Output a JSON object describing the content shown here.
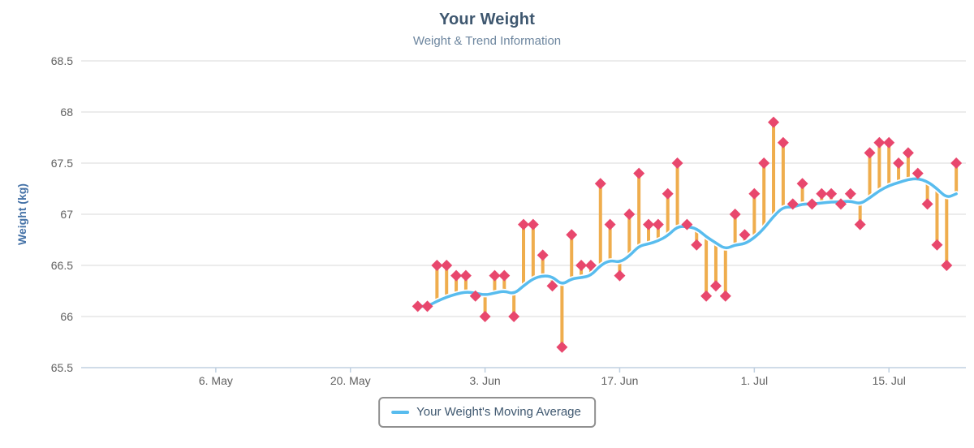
{
  "chart_data": {
    "type": "scatter",
    "title": "Your Weight",
    "subtitle": "Weight & Trend Information",
    "ylabel": "Weight (kg)",
    "xlabel": "",
    "ylim": [
      65.5,
      68.5
    ],
    "y_ticks": [
      "65.5",
      "66",
      "66.5",
      "67",
      "67.5",
      "68",
      "68.5"
    ],
    "y_tick_values": [
      65.5,
      66.0,
      66.5,
      67.0,
      67.5,
      68.0,
      68.5
    ],
    "x_tick_labels": [
      "6. May",
      "20. May",
      "3. Jun",
      "17. Jun",
      "1. Jul",
      "15. Jul"
    ],
    "x_axis": {
      "domain_days": 92,
      "first_tick_day": 14,
      "tick_interval_days": 14,
      "data_start_day": 35,
      "data_interval_days": 1
    },
    "grid": "horizontal",
    "legend_position": "bottom",
    "series": [
      {
        "name": "Your Weight",
        "marker": "diamond",
        "color": "#E8476D",
        "deviation_bar_color": "#EFAD4D",
        "values": [
          66.1,
          66.1,
          66.5,
          66.5,
          66.4,
          66.4,
          66.2,
          66.0,
          66.4,
          66.4,
          66.0,
          66.9,
          66.9,
          66.6,
          66.3,
          65.7,
          66.8,
          66.5,
          66.5,
          67.3,
          66.9,
          66.4,
          67.0,
          67.4,
          66.9,
          66.9,
          67.2,
          67.5,
          66.9,
          66.7,
          66.2,
          66.3,
          66.2,
          67.0,
          66.8,
          67.2,
          67.5,
          67.9,
          67.7,
          67.1,
          67.3,
          67.1,
          67.2,
          67.2,
          67.1,
          67.2,
          66.9,
          67.6,
          67.7,
          67.7,
          67.5,
          67.6,
          67.4,
          67.1,
          66.7,
          66.5,
          67.5
        ]
      },
      {
        "name": "Your Weight's Moving Average",
        "marker": "none",
        "color": "#58BCEE",
        "values": [
          66.1,
          66.1,
          66.15,
          66.19,
          66.22,
          66.24,
          66.23,
          66.21,
          66.23,
          66.25,
          66.22,
          66.3,
          66.37,
          66.4,
          66.39,
          66.31,
          66.37,
          66.38,
          66.4,
          66.5,
          66.55,
          66.53,
          66.59,
          66.69,
          66.71,
          66.74,
          66.79,
          66.88,
          66.88,
          66.86,
          66.78,
          66.72,
          66.66,
          66.7,
          66.71,
          66.77,
          66.86,
          66.98,
          67.07,
          67.07,
          67.1,
          67.1,
          67.11,
          67.12,
          67.12,
          67.13,
          67.1,
          67.16,
          67.23,
          67.28,
          67.31,
          67.34,
          67.35,
          67.32,
          67.25,
          67.16,
          67.2
        ]
      }
    ],
    "legend": {
      "label": "Your Weight's Moving Average"
    }
  },
  "style": {
    "grid_color": "#D8D8D8",
    "axis_line_color": "#C0D0E0",
    "title_color": "#3E576F",
    "subtitle_color": "#6D869F",
    "axis_label_color": "#606060",
    "y_axis_title_color": "#4572A7",
    "legend_border_color": "#909090"
  }
}
